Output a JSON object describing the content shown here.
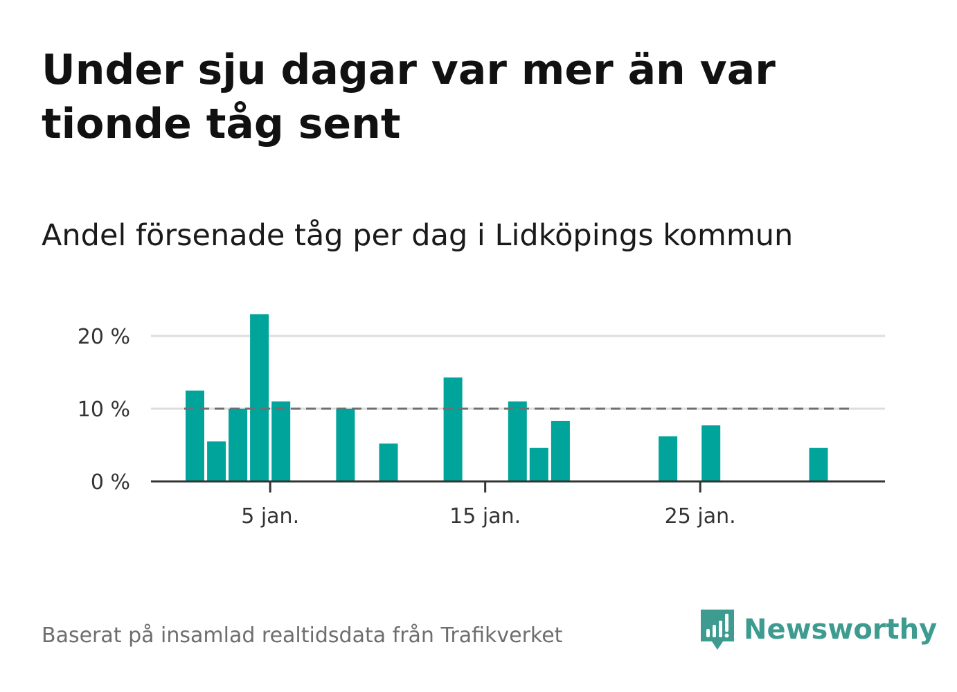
{
  "title": "Under sju dagar var mer än var tionde tåg sent",
  "subtitle": "Andel försenade tåg per dag i Lidköpings kommun",
  "source": "Baserat på insamlad realtidsdata från Trafikverket",
  "brand": {
    "name": "Newsworthy",
    "logo_icon": "newsworthy-logo-icon"
  },
  "colors": {
    "bar": "#00a49a",
    "reference_line": "#6e6e73",
    "grid": "#dddddd",
    "axis": "#333333",
    "brand": "#3e9b8f"
  },
  "chart_data": {
    "type": "bar",
    "x": [
      "2022-01-01",
      "2022-01-02",
      "2022-01-03",
      "2022-01-04",
      "2022-01-05",
      "2022-01-06",
      "2022-01-07",
      "2022-01-08",
      "2022-01-09",
      "2022-01-10",
      "2022-01-11",
      "2022-01-12",
      "2022-01-13",
      "2022-01-14",
      "2022-01-15",
      "2022-01-16",
      "2022-01-17",
      "2022-01-18",
      "2022-01-19",
      "2022-01-20",
      "2022-01-21",
      "2022-01-22",
      "2022-01-23",
      "2022-01-24",
      "2022-01-25",
      "2022-01-26",
      "2022-01-27",
      "2022-01-28",
      "2022-01-29",
      "2022-01-30",
      "2022-01-31"
    ],
    "values": [
      12.5,
      5.5,
      10.0,
      23.0,
      11.0,
      0,
      0,
      10.0,
      0,
      5.2,
      0,
      0,
      14.3,
      0,
      0,
      11.0,
      4.6,
      8.3,
      0,
      0,
      0,
      0,
      6.2,
      0,
      7.7,
      0,
      0,
      0,
      0,
      4.6,
      0
    ],
    "reference_line": {
      "value": 10
    },
    "yticks": [
      {
        "value": 0,
        "label": "0 %"
      },
      {
        "value": 10,
        "label": "10 %"
      },
      {
        "value": 20,
        "label": "20 %"
      }
    ],
    "xticks": [
      {
        "date": "2022-01-05",
        "label": "5 jan."
      },
      {
        "date": "2022-01-15",
        "label": "15 jan."
      },
      {
        "date": "2022-01-25",
        "label": "25 jan."
      }
    ],
    "ylim": [
      0,
      23
    ],
    "grid": true,
    "xlabel": "",
    "ylabel": ""
  }
}
